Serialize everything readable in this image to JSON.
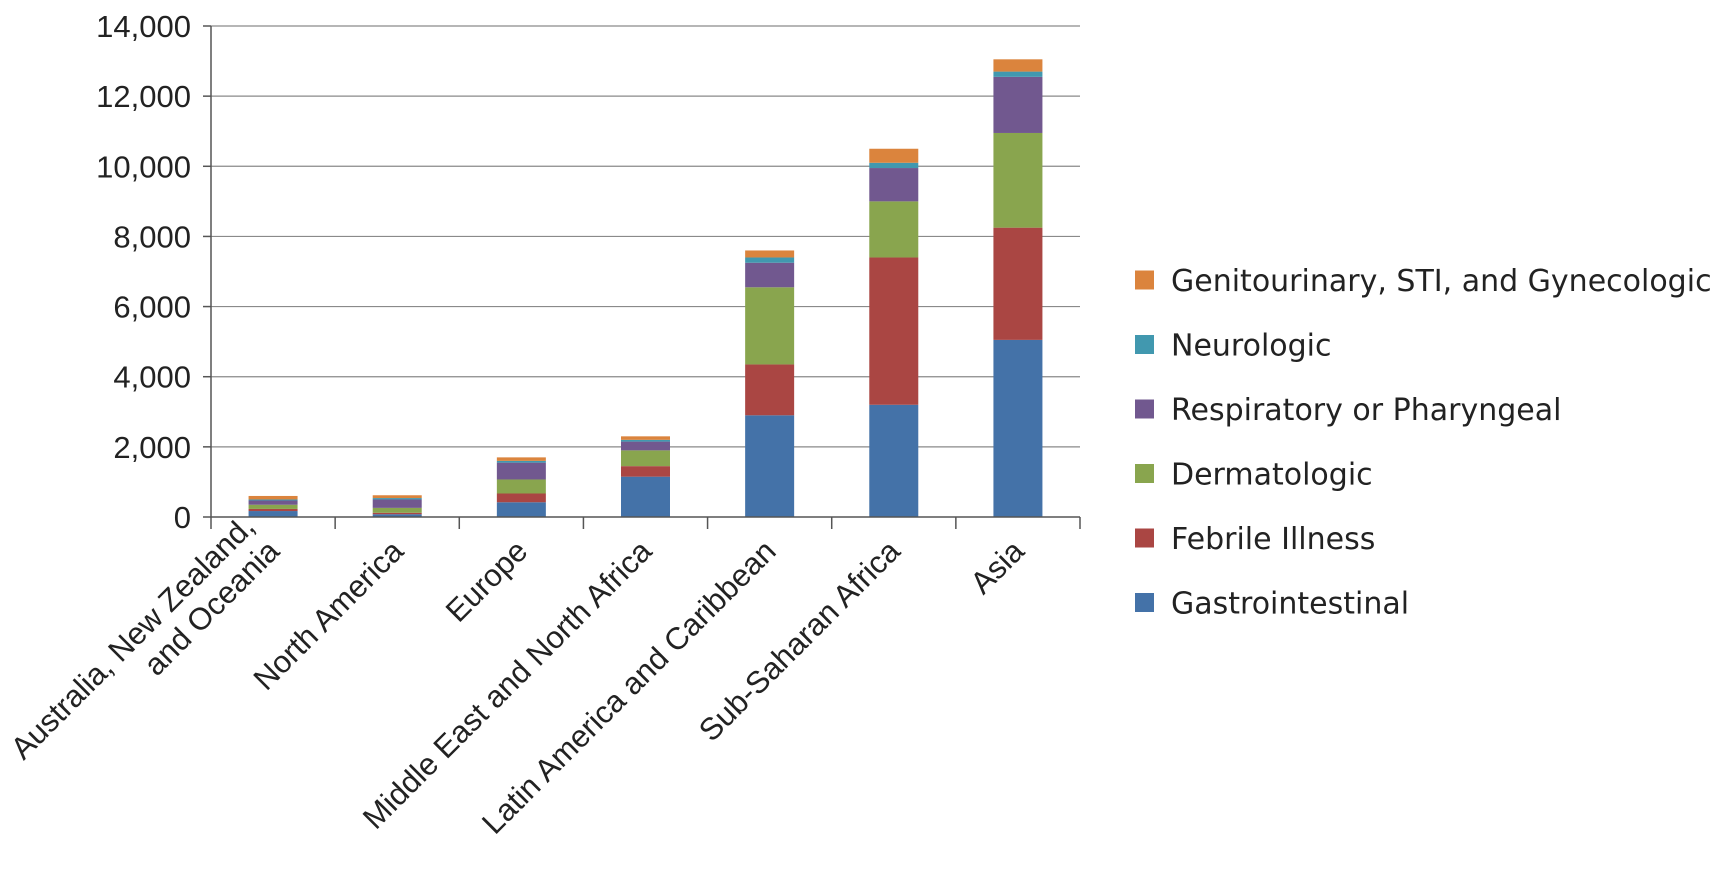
{
  "chart_data": {
    "type": "bar",
    "stacked": true,
    "title": "",
    "xlabel": "",
    "ylabel": "",
    "ylim": [
      0,
      14000
    ],
    "yticks": [
      0,
      2000,
      4000,
      6000,
      8000,
      10000,
      12000,
      14000
    ],
    "ytick_labels": [
      "0",
      "2,000",
      "4,000",
      "6,000",
      "8,000",
      "10,000",
      "12,000",
      "14,000"
    ],
    "grid": true,
    "legend_position": "right",
    "categories": [
      [
        "Australia, New Zealand,",
        "and Oceania"
      ],
      [
        "North America"
      ],
      [
        "Europe"
      ],
      [
        "Middle East and North Africa"
      ],
      [
        "Latin America and Caribbean"
      ],
      [
        "Sub-Saharan Africa"
      ],
      [
        "Asia"
      ]
    ],
    "series": [
      {
        "name": "Gastrointestinal",
        "color": "#4472A8",
        "values": [
          170,
          80,
          420,
          1150,
          2900,
          3200,
          5050
        ]
      },
      {
        "name": "Febrile Illness",
        "color": "#AA4643",
        "values": [
          60,
          40,
          250,
          300,
          1450,
          4200,
          3200
        ]
      },
      {
        "name": "Dermatologic",
        "color": "#89A54E",
        "values": [
          120,
          140,
          400,
          450,
          2200,
          1600,
          2700
        ]
      },
      {
        "name": "Respiratory or Pharyngeal",
        "color": "#71588F",
        "values": [
          120,
          240,
          480,
          250,
          700,
          950,
          1600
        ]
      },
      {
        "name": "Neurologic",
        "color": "#4198AF",
        "values": [
          30,
          40,
          50,
          50,
          150,
          150,
          150
        ]
      },
      {
        "name": "Genitourinary, STI, and Gynecologic",
        "color": "#DB843D",
        "values": [
          100,
          80,
          100,
          100,
          200,
          400,
          350
        ]
      }
    ]
  }
}
